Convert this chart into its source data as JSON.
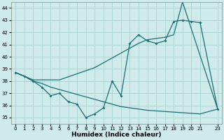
{
  "xlabel": "Humidex (Indice chaleur)",
  "background_color": "#ceeaea",
  "grid_color": "#aed4d4",
  "line_color": "#1a7070",
  "xlim": [
    -0.5,
    23.5
  ],
  "ylim": [
    34.5,
    44.5
  ],
  "yticks": [
    35,
    36,
    37,
    38,
    39,
    40,
    41,
    42,
    43,
    44
  ],
  "xtick_pos": [
    0,
    1,
    2,
    3,
    4,
    5,
    6,
    7,
    8,
    9,
    10,
    11,
    12,
    13,
    14,
    15,
    16,
    17,
    18,
    19,
    20,
    21,
    23
  ],
  "xtick_labels": [
    "0",
    "1",
    "2",
    "3",
    "4",
    "5",
    "6",
    "7",
    "8",
    "9",
    "10",
    "11",
    "12",
    "13",
    "14",
    "15",
    "16",
    "17",
    "18",
    "19",
    "20",
    "21",
    "23"
  ],
  "line1_x": [
    0,
    1,
    2,
    3,
    4,
    5,
    6,
    7,
    8,
    9,
    10,
    11,
    12,
    13,
    14,
    15,
    16,
    17,
    18,
    19,
    20,
    21,
    23
  ],
  "line1_y": [
    38.7,
    38.4,
    38.0,
    37.5,
    36.8,
    37.0,
    36.3,
    36.1,
    35.0,
    35.3,
    35.8,
    38.0,
    36.8,
    41.1,
    41.8,
    41.3,
    41.1,
    41.3,
    42.9,
    43.0,
    42.9,
    42.8,
    35.7
  ],
  "line2_x": [
    0,
    1,
    2,
    3,
    4,
    5,
    6,
    7,
    8,
    9,
    10,
    11,
    12,
    13,
    14,
    15,
    16,
    17,
    18,
    19,
    20,
    21,
    23
  ],
  "line2_y": [
    38.7,
    38.4,
    38.0,
    37.8,
    37.5,
    37.3,
    37.1,
    36.9,
    36.7,
    36.5,
    36.3,
    36.1,
    35.9,
    35.8,
    35.7,
    35.6,
    35.55,
    35.5,
    35.45,
    35.4,
    35.35,
    35.3,
    35.7
  ],
  "line3_x": [
    0,
    1,
    2,
    3,
    4,
    5,
    6,
    7,
    8,
    9,
    10,
    11,
    12,
    13,
    14,
    15,
    16,
    17,
    18,
    19,
    23
  ],
  "line3_y": [
    38.7,
    38.4,
    38.1,
    38.1,
    38.1,
    38.1,
    38.35,
    38.6,
    38.85,
    39.1,
    39.5,
    39.9,
    40.3,
    40.7,
    41.1,
    41.4,
    41.5,
    41.6,
    41.8,
    44.5,
    35.7
  ]
}
